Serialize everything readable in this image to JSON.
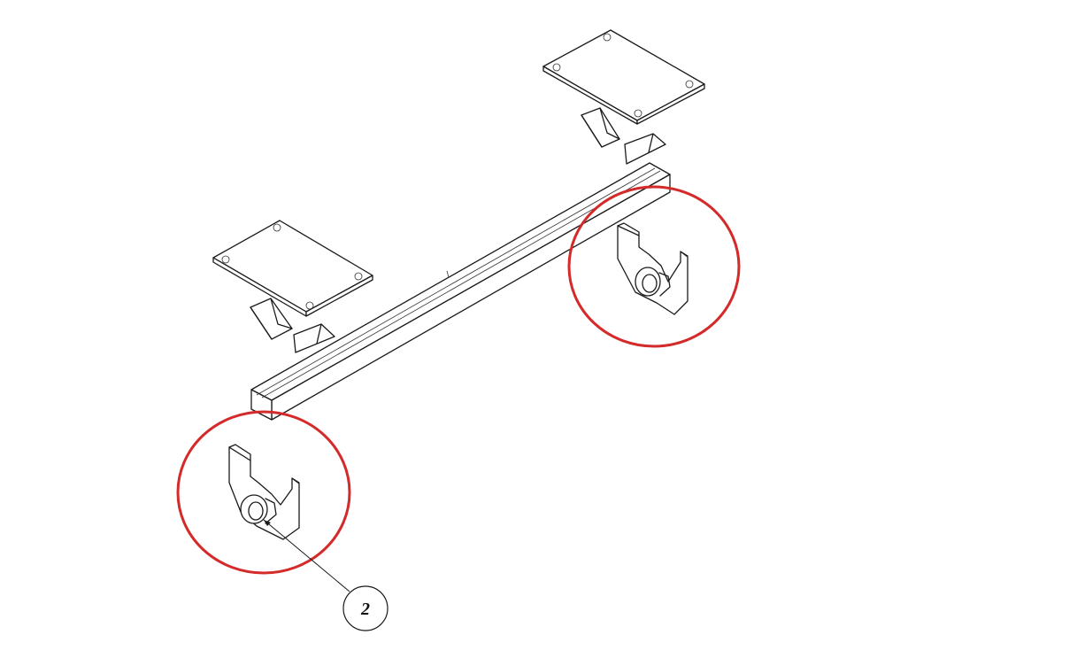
{
  "drawing": {
    "callouts": [
      {
        "label": "2"
      }
    ],
    "highlight_color": "#d42a2a",
    "line_color": "#1a1a1a"
  }
}
